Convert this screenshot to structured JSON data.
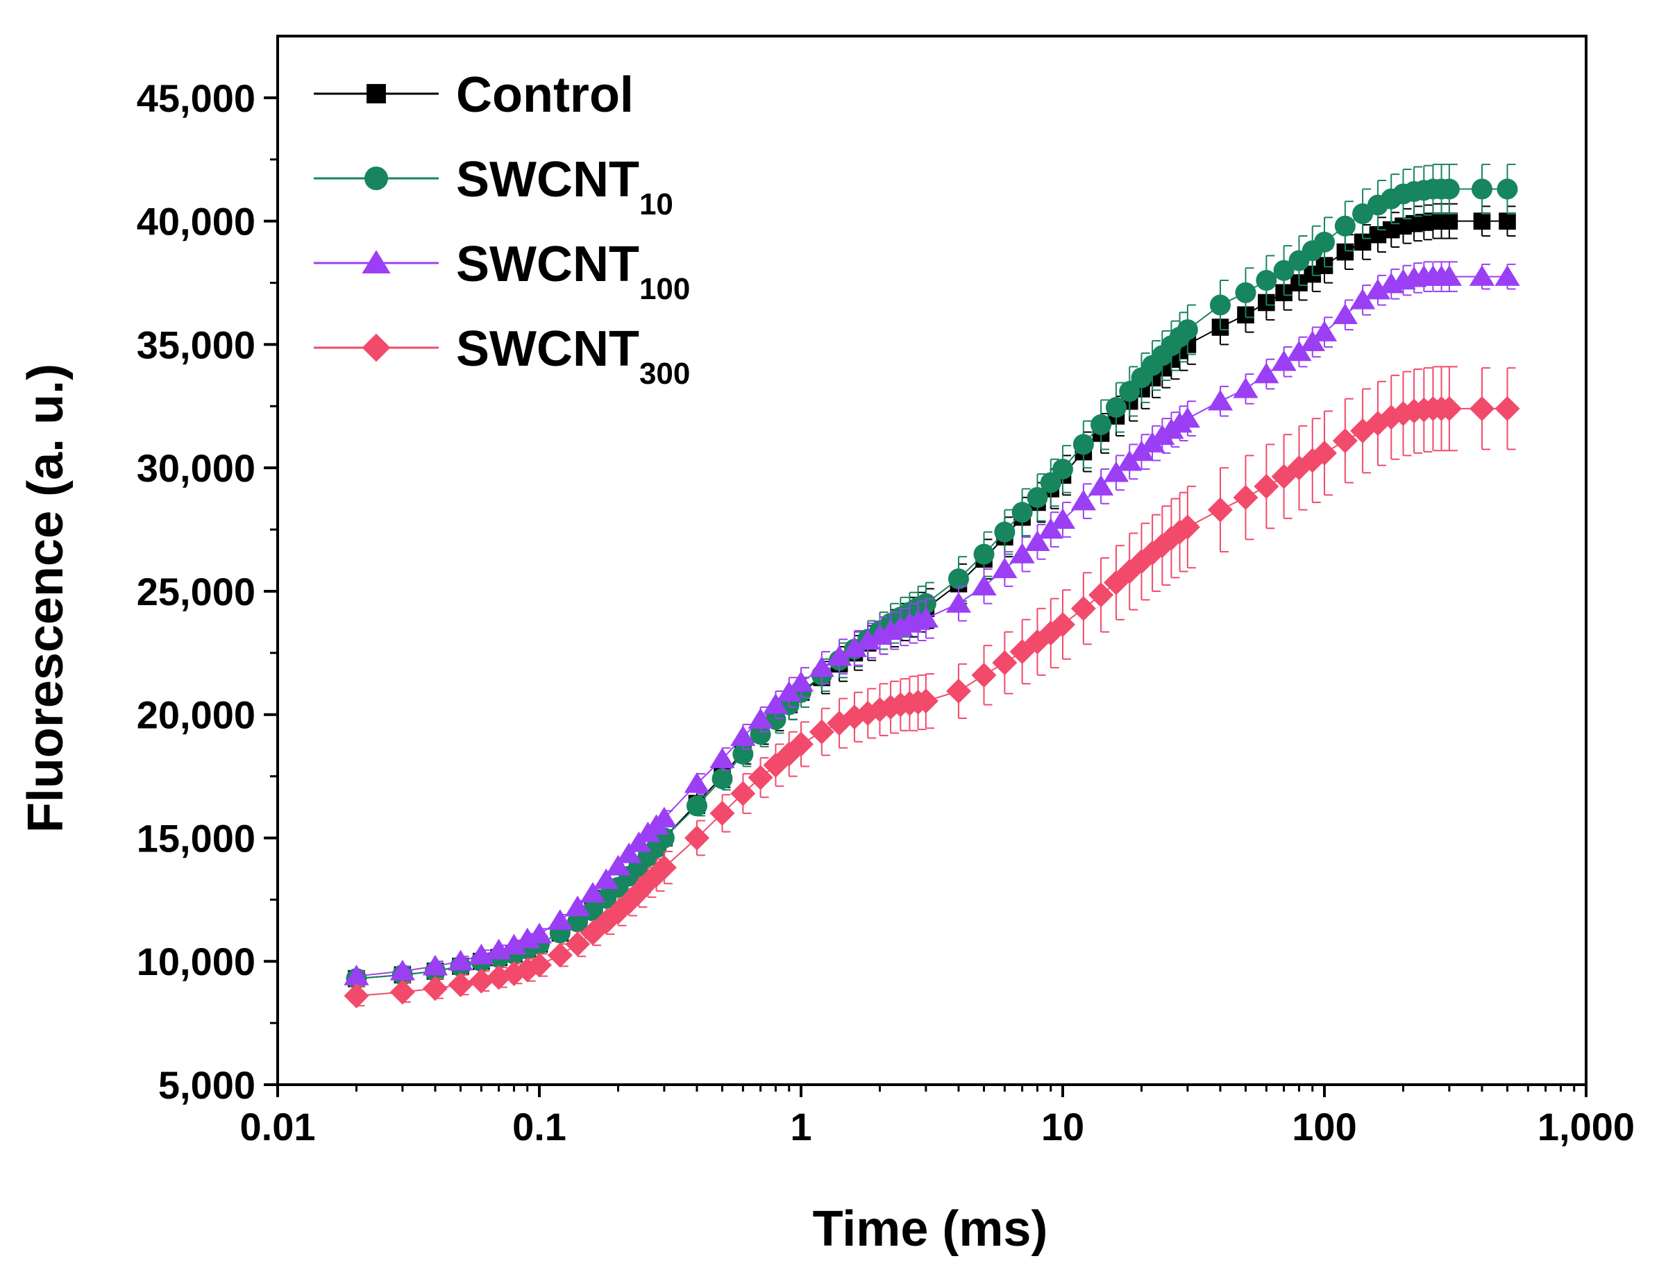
{
  "chart_data": {
    "type": "scatter",
    "xscale": "log",
    "xlabel": "Time (ms)",
    "ylabel": "Fluorescence (a. u.)",
    "xlim": [
      0.01,
      1000
    ],
    "ylim": [
      5000,
      47500
    ],
    "x_ticks": [
      0.01,
      0.1,
      1,
      10,
      100,
      1000
    ],
    "x_tick_labels": [
      "0.01",
      "0.1",
      "1",
      "10",
      "100",
      "1,000"
    ],
    "y_ticks": [
      5000,
      10000,
      15000,
      20000,
      25000,
      30000,
      35000,
      40000,
      45000
    ],
    "y_tick_labels": [
      "5,000",
      "10,000",
      "15,000",
      "20,000",
      "25,000",
      "30,000",
      "35,000",
      "40,000",
      "45,000"
    ],
    "legend_position": "top-left",
    "x": [
      0.02,
      0.03,
      0.04,
      0.05,
      0.06,
      0.07,
      0.08,
      0.09,
      0.1,
      0.12,
      0.14,
      0.16,
      0.18,
      0.2,
      0.22,
      0.24,
      0.26,
      0.28,
      0.3,
      0.4,
      0.5,
      0.6,
      0.7,
      0.8,
      0.9,
      1,
      1.2,
      1.4,
      1.6,
      1.8,
      2,
      2.2,
      2.4,
      2.6,
      2.8,
      3,
      4,
      5,
      6,
      7,
      8,
      9,
      10,
      12,
      14,
      16,
      18,
      20,
      22,
      24,
      26,
      28,
      30,
      40,
      50,
      60,
      70,
      80,
      90,
      100,
      120,
      140,
      160,
      180,
      200,
      220,
      240,
      260,
      280,
      300,
      400,
      500
    ],
    "series": [
      {
        "name": "Control",
        "label_main": "Control",
        "label_sub": "",
        "marker": "square",
        "color": "#000000",
        "error": [
          200,
          200,
          200,
          200,
          200,
          200,
          200,
          220,
          220,
          240,
          250,
          260,
          270,
          280,
          290,
          300,
          300,
          300,
          300,
          400,
          450,
          500,
          500,
          550,
          600,
          600,
          650,
          700,
          700,
          700,
          750,
          750,
          750,
          800,
          800,
          800,
          800,
          800,
          800,
          800,
          800,
          800,
          800,
          800,
          800,
          800,
          800,
          800,
          800,
          800,
          800,
          800,
          800,
          700,
          700,
          700,
          700,
          700,
          700,
          700,
          700,
          700,
          700,
          700,
          700,
          700,
          700,
          700,
          700,
          700,
          600,
          600
        ],
        "values": [
          9300,
          9450,
          9600,
          9800,
          10000,
          10150,
          10300,
          10500,
          10700,
          11150,
          11600,
          12050,
          12550,
          13000,
          13450,
          13850,
          14250,
          14600,
          15000,
          16400,
          17500,
          18500,
          19300,
          19900,
          20400,
          20900,
          21500,
          22050,
          22500,
          22900,
          23200,
          23500,
          23750,
          23950,
          24150,
          24300,
          25300,
          26300,
          27200,
          28000,
          28600,
          29150,
          29700,
          30650,
          31400,
          32100,
          32700,
          33200,
          33650,
          34050,
          34400,
          34750,
          35000,
          35700,
          36200,
          36700,
          37100,
          37500,
          37850,
          38200,
          38750,
          39150,
          39450,
          39650,
          39800,
          39900,
          39950,
          40000,
          40000,
          40000,
          40000,
          40000
        ]
      },
      {
        "name": "SWCNT10",
        "label_main": "SWCNT",
        "label_sub": "10",
        "marker": "circle",
        "color": "#17855e",
        "error": [
          200,
          200,
          200,
          200,
          200,
          200,
          200,
          220,
          220,
          240,
          250,
          260,
          270,
          280,
          290,
          300,
          300,
          300,
          300,
          400,
          450,
          500,
          500,
          550,
          600,
          600,
          650,
          700,
          700,
          750,
          750,
          800,
          800,
          800,
          850,
          850,
          900,
          900,
          900,
          950,
          950,
          950,
          950,
          950,
          1000,
          1000,
          1000,
          1000,
          1000,
          1000,
          1000,
          1000,
          1000,
          1000,
          1000,
          1000,
          1000,
          1000,
          1000,
          1000,
          1000,
          1000,
          1000,
          1000,
          1000,
          1000,
          1000,
          1000,
          1000,
          1000,
          1000,
          1000
        ],
        "values": [
          9300,
          9450,
          9600,
          9800,
          10000,
          10150,
          10300,
          10500,
          10700,
          11150,
          11600,
          12050,
          12550,
          13000,
          13450,
          13850,
          14250,
          14600,
          15000,
          16300,
          17400,
          18400,
          19200,
          19800,
          20400,
          20900,
          21600,
          22200,
          22650,
          23050,
          23400,
          23700,
          23950,
          24150,
          24350,
          24500,
          25500,
          26500,
          27400,
          28200,
          28800,
          29400,
          29950,
          30950,
          31750,
          32450,
          33100,
          33650,
          34150,
          34550,
          34950,
          35300,
          35600,
          36600,
          37100,
          37600,
          38000,
          38400,
          38800,
          39150,
          39800,
          40300,
          40650,
          40900,
          41100,
          41200,
          41250,
          41300,
          41300,
          41300,
          41300,
          41300
        ]
      },
      {
        "name": "SWCNT100",
        "label_main": "SWCNT",
        "label_sub": "100",
        "marker": "triangle",
        "color": "#9b3ff5",
        "error": [
          200,
          200,
          200,
          200,
          200,
          200,
          200,
          220,
          220,
          240,
          250,
          260,
          270,
          280,
          290,
          300,
          300,
          300,
          300,
          400,
          450,
          500,
          500,
          550,
          600,
          600,
          650,
          700,
          700,
          700,
          750,
          750,
          750,
          800,
          800,
          800,
          700,
          700,
          700,
          700,
          700,
          700,
          700,
          700,
          700,
          700,
          700,
          700,
          700,
          700,
          700,
          700,
          700,
          600,
          600,
          600,
          600,
          600,
          600,
          600,
          600,
          600,
          600,
          600,
          600,
          600,
          600,
          600,
          600,
          600,
          500,
          500
        ],
        "values": [
          9400,
          9600,
          9800,
          10000,
          10250,
          10450,
          10650,
          10900,
          11100,
          11650,
          12200,
          12750,
          13300,
          13850,
          14350,
          14800,
          15200,
          15500,
          15800,
          17200,
          18200,
          19100,
          19800,
          20400,
          20900,
          21300,
          21900,
          22350,
          22700,
          23000,
          23200,
          23400,
          23550,
          23700,
          23800,
          23900,
          24500,
          25200,
          25900,
          26500,
          27000,
          27500,
          27900,
          28650,
          29250,
          29800,
          30250,
          30650,
          31000,
          31300,
          31550,
          31800,
          32000,
          32700,
          33200,
          33800,
          34300,
          34700,
          35100,
          35500,
          36200,
          36800,
          37200,
          37450,
          37600,
          37700,
          37750,
          37750,
          37750,
          37750,
          37750,
          37750
        ]
      },
      {
        "name": "SWCNT300",
        "label_main": "SWCNT",
        "label_sub": "300",
        "marker": "diamond",
        "color": "#f24a6a",
        "error": [
          400,
          400,
          400,
          400,
          400,
          400,
          400,
          450,
          450,
          450,
          500,
          500,
          500,
          550,
          550,
          600,
          600,
          650,
          650,
          700,
          750,
          800,
          800,
          850,
          900,
          900,
          950,
          1000,
          1000,
          1000,
          1050,
          1050,
          1050,
          1100,
          1100,
          1100,
          1100,
          1200,
          1250,
          1300,
          1350,
          1400,
          1400,
          1450,
          1500,
          1500,
          1550,
          1550,
          1550,
          1600,
          1600,
          1600,
          1650,
          1700,
          1700,
          1700,
          1700,
          1700,
          1700,
          1700,
          1700,
          1700,
          1700,
          1700,
          1700,
          1700,
          1700,
          1700,
          1700,
          1700,
          1650,
          1650
        ],
        "values": [
          8600,
          8750,
          8900,
          9050,
          9200,
          9350,
          9500,
          9650,
          9850,
          10250,
          10700,
          11150,
          11600,
          12000,
          12400,
          12800,
          13200,
          13500,
          13800,
          15000,
          16000,
          16800,
          17450,
          17950,
          18400,
          18800,
          19300,
          19650,
          19900,
          20050,
          20200,
          20300,
          20400,
          20450,
          20500,
          20550,
          20950,
          21600,
          22100,
          22550,
          22950,
          23300,
          23650,
          24300,
          24850,
          25350,
          25800,
          26200,
          26550,
          26850,
          27150,
          27400,
          27600,
          28300,
          28800,
          29250,
          29650,
          30000,
          30300,
          30600,
          31100,
          31500,
          31800,
          32050,
          32200,
          32300,
          32350,
          32400,
          32400,
          32400,
          32400,
          32400
        ]
      }
    ]
  }
}
